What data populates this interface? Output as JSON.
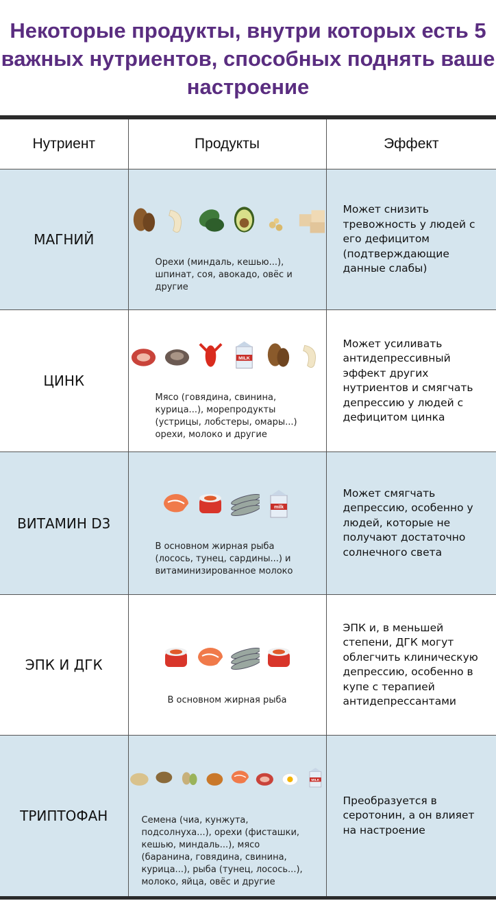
{
  "title": "Некоторые продукты, внутри которых есть 5 важных нутриентов, способных поднять ваше настроение",
  "colors": {
    "title": "#5a2d80",
    "row_alt": "#d5e5ee"
  },
  "headers": {
    "nutrient": "Нутриент",
    "products": "Продукты",
    "effect": "Эффект"
  },
  "rows": [
    {
      "nutrient": "МАГНИЙ",
      "products": "Орехи (миндаль, кешью...), шпинат, соя, авокадо, овёс и другие",
      "effect": "Может снизить тревожность у людей с его дефицитом (подтверждающие данные слабы)",
      "icons": [
        "almond-icon",
        "cashew-icon",
        "spinach-icon",
        "avocado-icon",
        "soy-icon",
        "tofu-icon"
      ]
    },
    {
      "nutrient": "ЦИНК",
      "products": "Мясо (говядина, свинина, курица...), морепродукты (устрицы, лобстеры, омары...) орехи, молоко и другие",
      "effect": "Может усиливать антидепрессивный эффект других нутриентов и смягчать депрессию у людей с дефицитом цинка",
      "icons": [
        "meat-icon",
        "oyster-icon",
        "lobster-icon",
        "milk-carton-icon",
        "almond-icon",
        "cashew-icon"
      ],
      "milk_label": "MILK"
    },
    {
      "nutrient": "ВИТАМИН D3",
      "products": "В основном жирная рыба (лосось, тунец, сардины...) и витаминизированное молоко",
      "effect": "Может смягчать депрессию, особенно у людей, которые не получают достаточно солнечного света",
      "icons": [
        "salmon-icon",
        "sushi-icon",
        "sardines-icon",
        "milk-carton-icon"
      ],
      "milk_label": "milk"
    },
    {
      "nutrient": "ЭПК И ДГК",
      "products": "В основном жирная рыба",
      "effect": "ЭПК и, в меньшей степени, ДГК могут облегчить клиническую депрессию, особенно в купе с терапией антидепрессантами",
      "icons": [
        "sushi-icon",
        "salmon-icon",
        "sardines-icon",
        "sushi-icon"
      ]
    },
    {
      "nutrient": "ТРИПТОФАН",
      "products": "Семена (чиа, кунжута, подсолнуха...), орехи (фисташки, кешью, миндаль...), мясо (баранина, говядина, свинина, курица...), рыба (тунец, лосось...), молоко, яйца, овёс и другие",
      "effect": "Преобразуется в серотонин, а он влияет на настроение",
      "icons": [
        "seeds-icon",
        "oats-icon",
        "pistachio-icon",
        "chicken-icon",
        "salmon-icon",
        "meat-icon",
        "egg-icon",
        "milk-carton-icon"
      ],
      "milk_label": "MILK"
    }
  ]
}
